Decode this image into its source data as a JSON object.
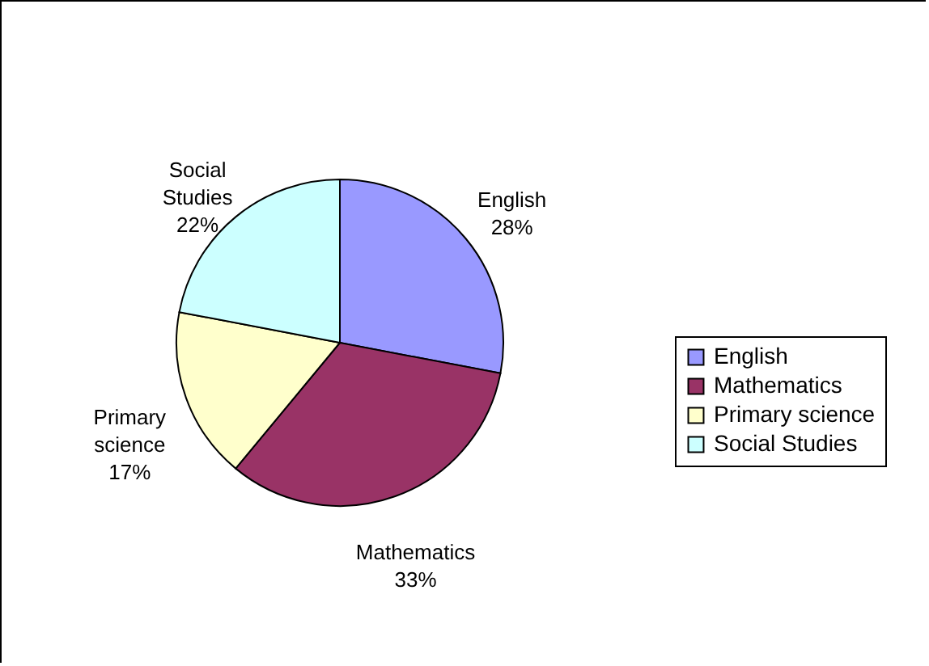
{
  "chart_data": {
    "type": "pie",
    "categories": [
      "English",
      "Mathematics",
      "Primary science",
      "Social Studies"
    ],
    "values": [
      28,
      33,
      17,
      22
    ],
    "colors": [
      "#9999ff",
      "#993366",
      "#ffffcc",
      "#ccffff"
    ],
    "value_labels": [
      "28%",
      "33%",
      "17%",
      "22%"
    ],
    "legend": "right"
  }
}
